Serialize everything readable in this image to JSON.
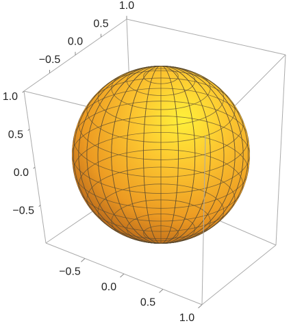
{
  "chart_data": {
    "type": "surface3d",
    "xlim": [
      -1,
      1
    ],
    "ylim": [
      -1,
      1
    ],
    "zlim": [
      -1,
      1
    ],
    "xticks": [
      {
        "value": -0.5,
        "label": "−0.5"
      },
      {
        "value": 0,
        "label": "0.0"
      },
      0.5,
      {
        "value": 1,
        "label": "1.0"
      }
    ],
    "yticks": [
      {
        "value": -0.5,
        "label": "−0.5"
      },
      {
        "value": 0,
        "label": "0.0"
      },
      0.5,
      {
        "value": 1,
        "label": "1.0"
      }
    ],
    "zticks": [
      {
        "value": -0.5,
        "label": "−0.5"
      },
      {
        "value": 0,
        "label": "0.0"
      },
      0.5,
      {
        "value": 1,
        "label": "1.0"
      }
    ]
  }
}
